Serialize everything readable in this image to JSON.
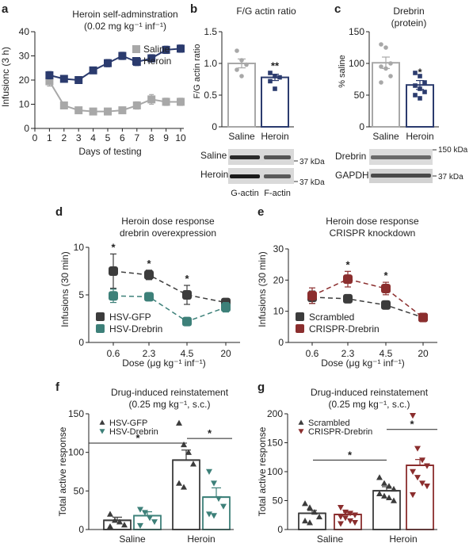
{
  "colors": {
    "saline": "#a8a8a8",
    "heroin": "#2b3b6e",
    "gfp": "#3c3c3c",
    "drebrin": "#3d8079",
    "crispr": "#8b2e2e",
    "scatter": "#555555"
  },
  "chart_data": [
    {
      "panel": "a",
      "type": "line",
      "title": "Heroin self-adminstration",
      "subtitle": "(0.02 mg kg⁻¹ inf⁻¹)",
      "xlabel": "Days of testing",
      "ylabel": "Infusionc (3 h)",
      "xlim": [
        0,
        10
      ],
      "ylim": [
        0,
        40
      ],
      "x_ticks": [
        "0",
        "1",
        "2",
        "3",
        "4",
        "5",
        "6",
        "7",
        "8",
        "9",
        "10"
      ],
      "y_ticks": [
        "0",
        "10",
        "20",
        "30",
        "40"
      ],
      "x": [
        1,
        2,
        3,
        4,
        5,
        6,
        7,
        8,
        9,
        10
      ],
      "series": [
        {
          "name": "Saline",
          "values": [
            19.5,
            9.5,
            7.5,
            7,
            7,
            7.5,
            9.5,
            12,
            11,
            11
          ],
          "errors": [
            2,
            1,
            1,
            1,
            1,
            1,
            1.5,
            2,
            1.5,
            1.5
          ]
        },
        {
          "name": "Heroin",
          "values": [
            22,
            20.5,
            20,
            24,
            27,
            30,
            27.5,
            29,
            32.5,
            33
          ],
          "errors": [
            1.5,
            1,
            1,
            1,
            1.5,
            1.5,
            1.5,
            1.5,
            1.5,
            1.5
          ]
        }
      ],
      "legend": "top-right"
    },
    {
      "panel": "b",
      "type": "bar",
      "title": "F/G actin ratio",
      "ylabel": "F/G actin ratio",
      "ylim": [
        0,
        1.5
      ],
      "y_ticks": [
        "0",
        "0.5",
        "1.0",
        "1.5"
      ],
      "categories": [
        "Saline",
        "Heroin"
      ],
      "values": [
        1.0,
        0.78
      ],
      "errors": [
        0.07,
        0.05
      ],
      "points": [
        [
          1.2,
          1.05,
          0.98,
          0.9,
          0.8
        ],
        [
          0.85,
          0.8,
          0.78,
          0.72,
          0.6
        ]
      ],
      "annotations": [
        "**"
      ],
      "blot": {
        "rows": [
          "Saline",
          "Heroin"
        ],
        "markers": [
          "37 kDa",
          "37 kDa"
        ],
        "lanes": [
          "G-actin",
          "F-actin"
        ]
      }
    },
    {
      "panel": "c",
      "type": "bar",
      "title": "Drebrin",
      "subtitle": "(protein)",
      "ylabel": "% saline",
      "ylim": [
        0,
        150
      ],
      "y_ticks": [
        "0",
        "50",
        "100",
        "150"
      ],
      "categories": [
        "Saline",
        "Heroin"
      ],
      "values": [
        101,
        66
      ],
      "errors": [
        9,
        7
      ],
      "points": [
        [
          130,
          125,
          100,
          95,
          92,
          80,
          70
        ],
        [
          85,
          80,
          70,
          65,
          60,
          55,
          50,
          45
        ]
      ],
      "annotations": [
        "*"
      ],
      "blot": {
        "rows": [
          "Drebrin",
          "GAPDH"
        ],
        "markers": [
          "150 kDa",
          "37 kDa"
        ]
      }
    },
    {
      "panel": "d",
      "type": "line",
      "title": "Heroin dose response",
      "subtitle": "drebrin overexpression",
      "xlabel": "Dose (μg kg⁻¹ inf⁻¹)",
      "ylabel": "Infusions (30 min)",
      "ylim": [
        0,
        10
      ],
      "y_ticks": [
        "0",
        "5",
        "10"
      ],
      "categories": [
        "0.6",
        "2.3",
        "4.5",
        "20"
      ],
      "series": [
        {
          "name": "HSV-GFP",
          "values": [
            7.5,
            7.1,
            5.0,
            4.2
          ],
          "errors": [
            1.8,
            0.5,
            1.0,
            0.4
          ]
        },
        {
          "name": "HSV-Drebrin",
          "values": [
            4.9,
            4.8,
            2.2,
            3.7
          ],
          "errors": [
            0.7,
            0.4,
            0.4,
            0.5
          ]
        }
      ],
      "annotations": [
        "*",
        "*",
        "*"
      ],
      "legend": "bottom-left"
    },
    {
      "panel": "e",
      "type": "line",
      "title": "Heroin dose response",
      "subtitle": "CRISPR knockdown",
      "xlabel": "Dose (μg kg⁻¹ inf⁻¹)",
      "ylabel": "Infusions (30 min)",
      "ylim": [
        0,
        30
      ],
      "y_ticks": [
        "0",
        "10",
        "20",
        "30"
      ],
      "categories": [
        "0.6",
        "2.3",
        "4.5",
        "20"
      ],
      "series": [
        {
          "name": "Scrambled",
          "values": [
            14.5,
            14,
            12,
            8
          ],
          "errors": [
            2,
            1,
            1,
            1
          ]
        },
        {
          "name": "CRISPR-Drebrin",
          "values": [
            15,
            20.3,
            17.3,
            8
          ],
          "errors": [
            2.5,
            2.5,
            2,
            1
          ]
        }
      ],
      "annotations": [
        "*",
        "*"
      ],
      "legend": "bottom-left"
    },
    {
      "panel": "f",
      "type": "bar",
      "title": "Drug-induced reinstatement",
      "subtitle": "(0.25 mg kg⁻¹, s.c.)",
      "ylabel": "Total active response",
      "ylim": [
        0,
        150
      ],
      "y_ticks": [
        "0",
        "50",
        "100",
        "150"
      ],
      "categories": [
        "Saline",
        "Heroin"
      ],
      "series": [
        {
          "name": "HSV-GFP",
          "values": [
            12,
            90
          ],
          "errors": [
            4,
            13
          ],
          "points": [
            [
              20,
              12,
              10,
              6,
              4
            ],
            [
              138,
              110,
              100,
              85,
              60,
              55
            ]
          ]
        },
        {
          "name": "HSV-Drebrin",
          "values": [
            18,
            42
          ],
          "errors": [
            5,
            12
          ],
          "points": [
            [
              26,
              22,
              15,
              10,
              5
            ],
            [
              75,
              60,
              40,
              30,
              20,
              18
            ]
          ]
        }
      ],
      "annotations": [
        "*",
        "*"
      ],
      "legend": "top-left"
    },
    {
      "panel": "g",
      "type": "bar",
      "title": "Drug-induced reinstatement",
      "subtitle": "(0.25 mg kg⁻¹, s.c.)",
      "ylabel": "Total active response",
      "ylim": [
        0,
        200
      ],
      "y_ticks": [
        "0",
        "50",
        "100",
        "150",
        "200"
      ],
      "categories": [
        "Saline",
        "Heroin"
      ],
      "series": [
        {
          "name": "Scrambled",
          "values": [
            28,
            67
          ],
          "errors": [
            5,
            7
          ],
          "points": [
            [
              45,
              38,
              30,
              22,
              15,
              12
            ],
            [
              90,
              80,
              75,
              70,
              62,
              58,
              55,
              50
            ]
          ]
        },
        {
          "name": "CRISPR-Drebrin",
          "values": [
            26,
            111
          ],
          "errors": [
            4,
            10
          ],
          "points": [
            [
              38,
              30,
              28,
              25,
              22,
              20,
              15,
              12,
              10
            ],
            [
              197,
              140,
              120,
              110,
              100,
              90,
              80,
              75,
              60
            ]
          ]
        }
      ],
      "annotations": [
        "*",
        "*"
      ],
      "legend": "top-left"
    }
  ]
}
